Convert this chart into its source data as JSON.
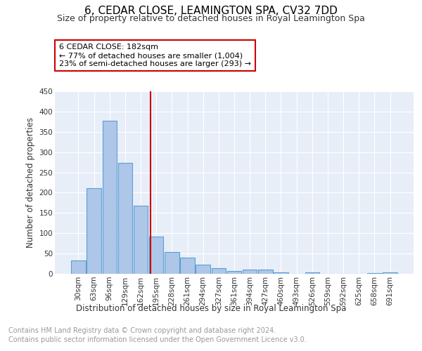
{
  "title": "6, CEDAR CLOSE, LEAMINGTON SPA, CV32 7DD",
  "subtitle": "Size of property relative to detached houses in Royal Leamington Spa",
  "xlabel": "Distribution of detached houses by size in Royal Leamington Spa",
  "ylabel": "Number of detached properties",
  "footer_line1": "Contains HM Land Registry data © Crown copyright and database right 2024.",
  "footer_line2": "Contains public sector information licensed under the Open Government Licence v3.0.",
  "bar_labels": [
    "30sqm",
    "63sqm",
    "96sqm",
    "129sqm",
    "162sqm",
    "195sqm",
    "228sqm",
    "261sqm",
    "294sqm",
    "327sqm",
    "361sqm",
    "394sqm",
    "427sqm",
    "460sqm",
    "493sqm",
    "526sqm",
    "559sqm",
    "592sqm",
    "625sqm",
    "658sqm",
    "691sqm"
  ],
  "bar_values": [
    33,
    211,
    378,
    273,
    168,
    91,
    53,
    39,
    23,
    13,
    7,
    11,
    10,
    4,
    0,
    3,
    0,
    0,
    0,
    1,
    4
  ],
  "bar_color": "#aec6e8",
  "bar_edge_color": "#5a9fd4",
  "vline_x": 4.62,
  "vline_color": "#cc0000",
  "annotation_text": "6 CEDAR CLOSE: 182sqm\n← 77% of detached houses are smaller (1,004)\n23% of semi-detached houses are larger (293) →",
  "annotation_box_color": "#ffffff",
  "annotation_border_color": "#cc0000",
  "ylim": [
    0,
    450
  ],
  "yticks": [
    0,
    50,
    100,
    150,
    200,
    250,
    300,
    350,
    400,
    450
  ],
  "plot_bg_color": "#e8eef8",
  "title_fontsize": 11,
  "subtitle_fontsize": 9,
  "axis_label_fontsize": 8.5,
  "tick_fontsize": 7.5,
  "footer_fontsize": 7
}
